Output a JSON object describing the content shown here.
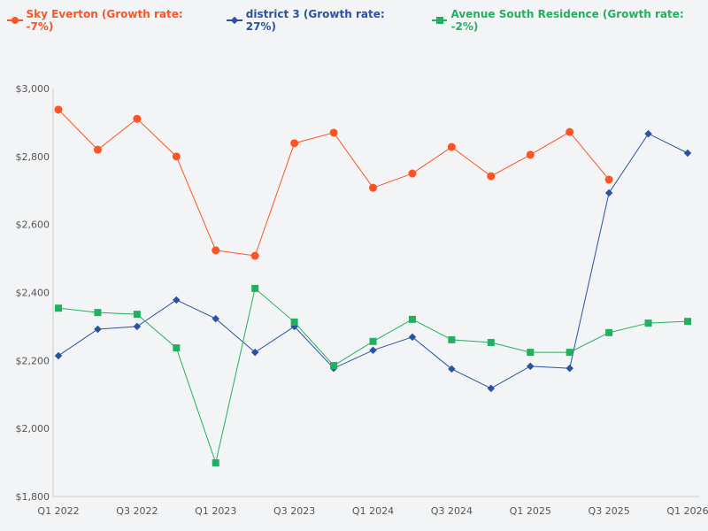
{
  "chart_data": {
    "type": "line",
    "title": "",
    "xlabel": "",
    "ylabel": "",
    "ylim": [
      1800,
      3000
    ],
    "yticks": [
      "$1,800",
      "$2,000",
      "$2,200",
      "$2,400",
      "$2,600",
      "$2,800",
      "$3,000"
    ],
    "ytick_values": [
      1800,
      2000,
      2200,
      2400,
      2600,
      2800,
      3000
    ],
    "x": [
      "Q1 2022",
      "Q2 2022",
      "Q3 2022",
      "Q4 2022",
      "Q1 2023",
      "Q2 2023",
      "Q3 2023",
      "Q4 2023",
      "Q1 2024",
      "Q2 2024",
      "Q3 2024",
      "Q4 2024",
      "Q1 2025",
      "Q2 2025",
      "Q3 2025",
      "Q4 2025",
      "Q1 2026"
    ],
    "xtick_labels": [
      "Q1 2022",
      "Q3 2022",
      "Q1 2023",
      "Q3 2023",
      "Q1 2024",
      "Q3 2024",
      "Q1 2025",
      "Q3 2025",
      "Q1 2026"
    ],
    "grid": false,
    "legend_position": "top-left",
    "series": [
      {
        "name": "Sky Everton (Growth rate: -7%)",
        "color": "#fc5424",
        "marker": "circle",
        "values": [
          2938,
          2820,
          2911,
          2800,
          2524,
          2508,
          2839,
          2870,
          2708,
          2750,
          2828,
          2742,
          2805,
          2872,
          2732,
          null,
          null
        ]
      },
      {
        "name": "district 3 (Growth rate: 27%)",
        "color": "#2a52a3",
        "marker": "diamond",
        "values": [
          2214,
          2292,
          2300,
          2378,
          2323,
          2224,
          2300,
          2177,
          2230,
          2269,
          2175,
          2118,
          2183,
          2177,
          2693,
          2867,
          2810
        ]
      },
      {
        "name": "Avenue South Residence (Growth rate: -2%)",
        "color": "#22b060",
        "marker": "square",
        "values": [
          2354,
          2341,
          2336,
          2237,
          1899,
          2412,
          2313,
          2185,
          2256,
          2321,
          2261,
          2253,
          2224,
          2224,
          2282,
          2310,
          2315
        ]
      }
    ]
  }
}
